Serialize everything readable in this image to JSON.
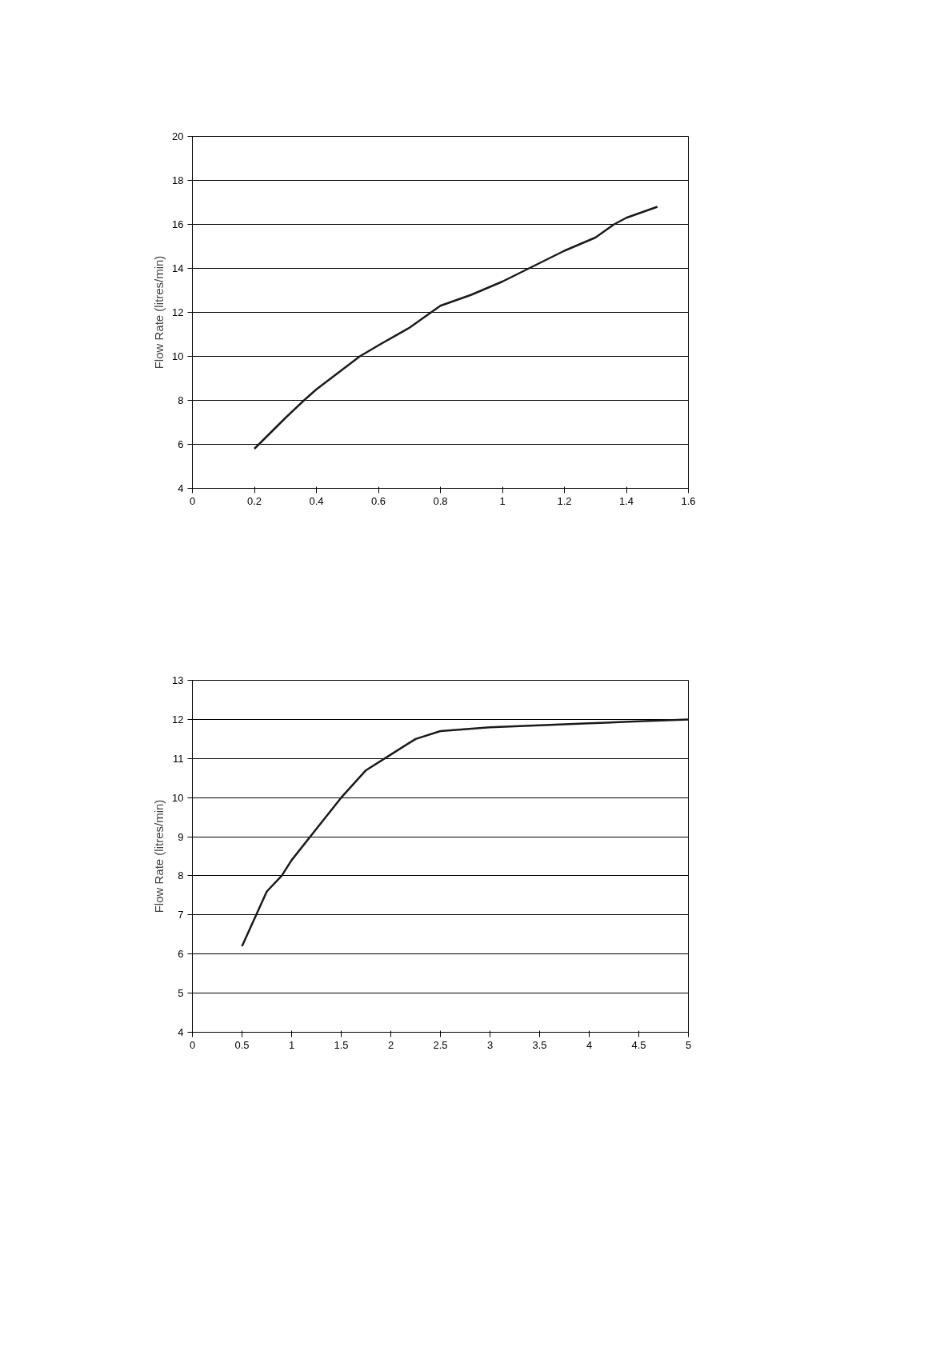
{
  "chart_data": [
    {
      "type": "line",
      "ylabel": "Flow Rate (litres/min)",
      "xlim": [
        0,
        1.6
      ],
      "ylim": [
        4,
        20
      ],
      "xticks": [
        0,
        0.2,
        0.4,
        0.6,
        0.8,
        1,
        1.2,
        1.4,
        1.6
      ],
      "yticks": [
        4,
        6,
        8,
        10,
        12,
        14,
        16,
        18,
        20
      ],
      "grid": "y",
      "series": [
        {
          "color": "#1a1a1a",
          "x": [
            0.2,
            0.3,
            0.36,
            0.4,
            0.54,
            0.6,
            0.7,
            0.8,
            0.9,
            1.0,
            1.1,
            1.2,
            1.3,
            1.36,
            1.4,
            1.5
          ],
          "values": [
            5.8,
            7.2,
            8,
            8.5,
            10,
            10.5,
            11.3,
            12.3,
            12.8,
            13.4,
            14.1,
            14.8,
            15.4,
            16,
            16.3,
            16.8
          ]
        }
      ]
    },
    {
      "type": "line",
      "ylabel": "Flow Rate (litres/min)",
      "xlim": [
        0,
        5
      ],
      "ylim": [
        4,
        13
      ],
      "xticks": [
        0,
        0.5,
        1,
        1.5,
        2,
        2.5,
        3,
        3.5,
        4,
        4.5,
        5
      ],
      "yticks": [
        4,
        5,
        6,
        7,
        8,
        9,
        10,
        11,
        12,
        13
      ],
      "grid": "y",
      "series": [
        {
          "color": "#1a1a1a",
          "x": [
            0.5,
            0.75,
            0.9,
            1.0,
            1.25,
            1.5,
            1.75,
            2.0,
            2.25,
            2.5,
            3,
            3.5,
            4,
            4.5,
            5
          ],
          "values": [
            6.2,
            7.6,
            8.0,
            8.4,
            9.2,
            10.0,
            10.7,
            11.1,
            11.5,
            11.7,
            11.8,
            11.85,
            11.9,
            11.95,
            12.0
          ]
        }
      ]
    }
  ]
}
